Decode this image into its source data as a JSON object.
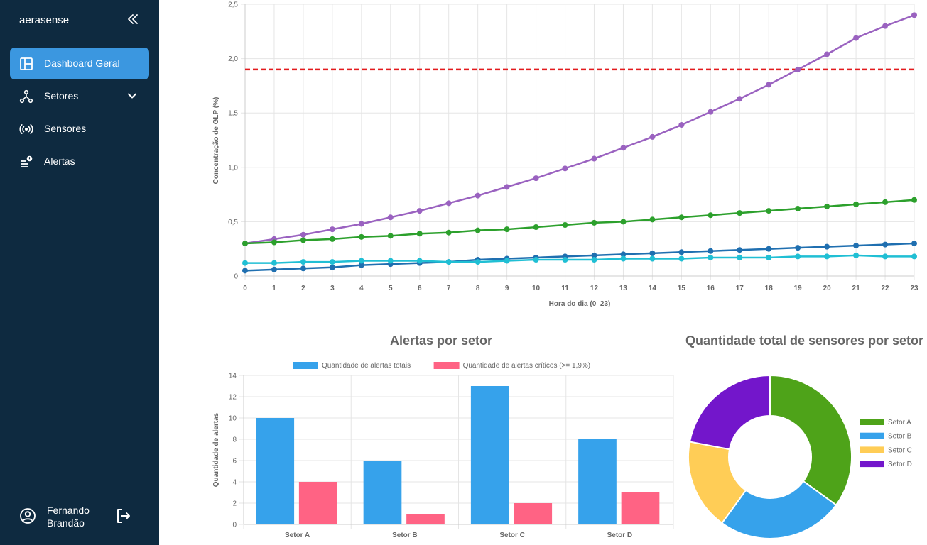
{
  "sidebar": {
    "brand": "aerasense",
    "items": [
      {
        "label": "Dashboard Geral",
        "icon": "dashboard-icon",
        "active": true
      },
      {
        "label": "Setores",
        "icon": "hub-icon",
        "active": false
      },
      {
        "label": "Sensores",
        "icon": "sensor-icon",
        "active": false
      },
      {
        "label": "Alertas",
        "icon": "alert-list-icon",
        "active": false
      }
    ],
    "user": {
      "name": "Fernando Brandão"
    }
  },
  "chart_data": [
    {
      "type": "line",
      "title": "",
      "xlabel": "Hora do dia (0–23)",
      "ylabel": "Concentração de GLP (%)",
      "x": [
        0,
        1,
        2,
        3,
        4,
        5,
        6,
        7,
        8,
        9,
        10,
        11,
        12,
        13,
        14,
        15,
        16,
        17,
        18,
        19,
        20,
        21,
        22,
        23
      ],
      "ylim": [
        0,
        2.5
      ],
      "yticks": [
        "0",
        "0,5",
        "1,0",
        "1,5",
        "2,0",
        "2,5"
      ],
      "threshold": {
        "value": 1.9,
        "color": "#e31a1c"
      },
      "grid": true,
      "series": [
        {
          "color": "#9a62c0",
          "values": [
            0.3,
            0.34,
            0.38,
            0.43,
            0.48,
            0.54,
            0.6,
            0.67,
            0.74,
            0.82,
            0.9,
            0.99,
            1.08,
            1.18,
            1.28,
            1.39,
            1.51,
            1.63,
            1.76,
            1.9,
            2.04,
            2.19,
            2.3,
            2.4
          ]
        },
        {
          "color": "#2ca02c",
          "values": [
            0.3,
            0.31,
            0.33,
            0.34,
            0.36,
            0.37,
            0.39,
            0.4,
            0.42,
            0.43,
            0.45,
            0.47,
            0.49,
            0.5,
            0.52,
            0.54,
            0.56,
            0.58,
            0.6,
            0.62,
            0.64,
            0.66,
            0.68,
            0.7
          ]
        },
        {
          "color": "#1f6fb0",
          "values": [
            0.05,
            0.06,
            0.07,
            0.08,
            0.1,
            0.11,
            0.12,
            0.13,
            0.15,
            0.16,
            0.17,
            0.18,
            0.19,
            0.2,
            0.21,
            0.22,
            0.23,
            0.24,
            0.25,
            0.26,
            0.27,
            0.28,
            0.29,
            0.3
          ]
        },
        {
          "color": "#20bfd4",
          "values": [
            0.12,
            0.12,
            0.13,
            0.13,
            0.14,
            0.14,
            0.14,
            0.13,
            0.13,
            0.14,
            0.15,
            0.15,
            0.15,
            0.16,
            0.16,
            0.16,
            0.17,
            0.17,
            0.17,
            0.18,
            0.18,
            0.19,
            0.18,
            0.18
          ]
        }
      ]
    },
    {
      "type": "bar",
      "title": "Alertas por setor",
      "ylabel": "Quantidade de alertas",
      "categories": [
        "Setor A",
        "Setor B",
        "Setor C",
        "Setor D"
      ],
      "ylim": [
        0,
        14
      ],
      "yticks": [
        0,
        2,
        4,
        6,
        8,
        10,
        12,
        14
      ],
      "legend_position": "top",
      "series": [
        {
          "name": "Quantidade de alertas totais",
          "color": "#36a2eb",
          "values": [
            10,
            6,
            13,
            8
          ]
        },
        {
          "name": "Quantidade de alertas críticos (>= 1,9%)",
          "color": "#ff6384",
          "values": [
            4,
            1,
            2,
            3
          ]
        }
      ]
    },
    {
      "type": "pie",
      "title": "Quantidade total de sensores por setor",
      "legend_position": "right",
      "labels": [
        "Setor A",
        "Setor B",
        "Setor C",
        "Setor D"
      ],
      "values": [
        35,
        25,
        18,
        22
      ],
      "colors": [
        "#4ea319",
        "#36a2eb",
        "#ffcd56",
        "#7316cb"
      ]
    }
  ]
}
